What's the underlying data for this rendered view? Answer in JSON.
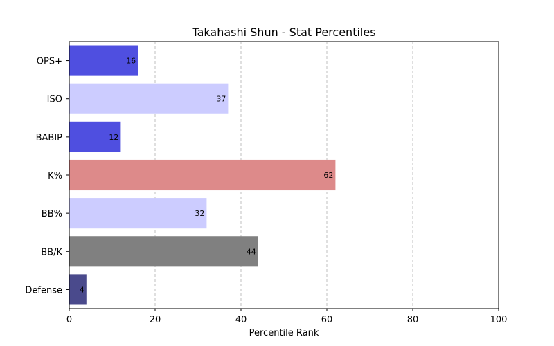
{
  "chart_data": {
    "type": "bar",
    "orientation": "horizontal",
    "title": "Takahashi Shun - Stat Percentiles",
    "xlabel": "Percentile Rank",
    "ylabel": "",
    "xlim": [
      0,
      100
    ],
    "xticks": [
      0,
      20,
      40,
      60,
      80,
      100
    ],
    "grid": "x-dashed",
    "categories": [
      "OPS+",
      "ISO",
      "BABIP",
      "K%",
      "BB%",
      "BB/K",
      "Defense"
    ],
    "values": [
      16,
      37,
      12,
      62,
      32,
      44,
      4
    ],
    "colors": [
      "#4f4fe0",
      "#ccccff",
      "#4f4fe0",
      "#dd8a8a",
      "#ccccff",
      "#808080",
      "#4a4a8c"
    ]
  }
}
